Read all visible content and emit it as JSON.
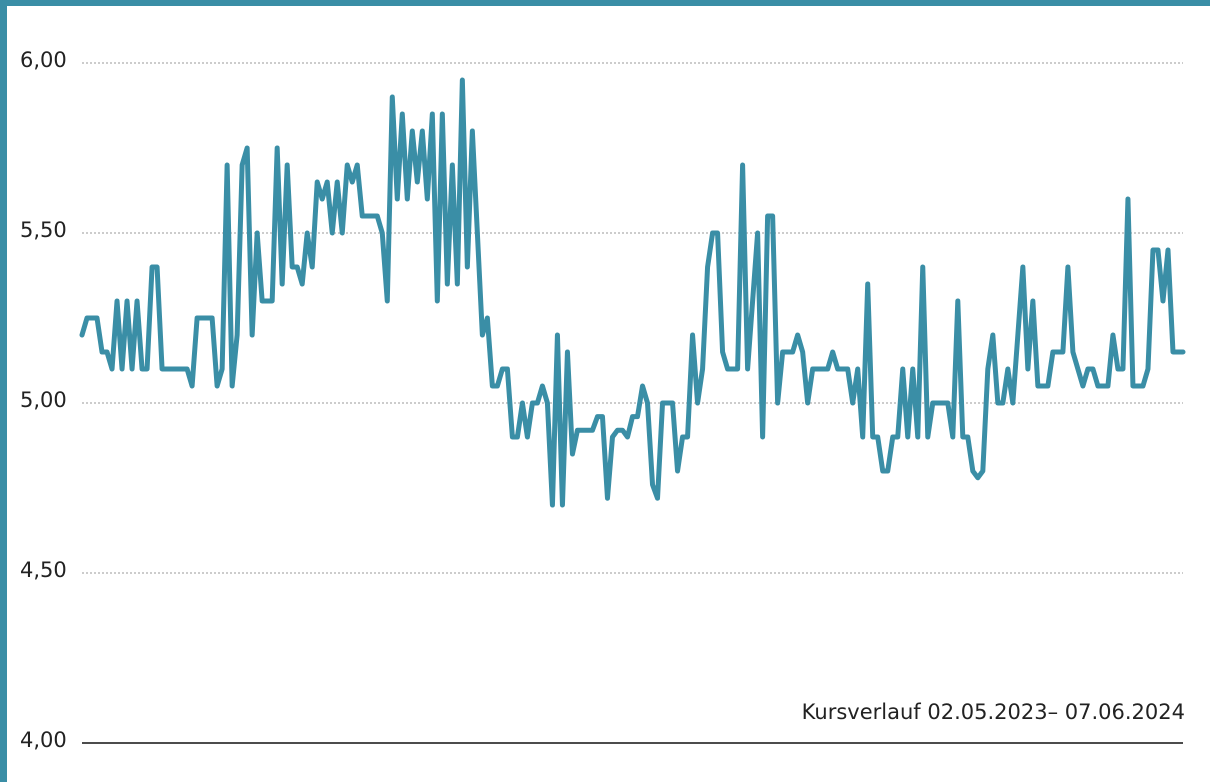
{
  "chart_data": {
    "type": "line",
    "annotation": "Kursverlauf 02.05.2023– 07.06.2024",
    "color": "#3a8ea6",
    "ylim": [
      4,
      6.1
    ],
    "yticks": [
      {
        "value": 4,
        "label": "4,00"
      },
      {
        "value": 4.5,
        "label": "4,50"
      },
      {
        "value": 5,
        "label": "5,00"
      },
      {
        "value": 5.5,
        "label": "5,50"
      },
      {
        "value": 6,
        "label": "6,00"
      }
    ],
    "grid": true,
    "values": [
      5.2,
      5.25,
      5.25,
      5.25,
      5.15,
      5.15,
      5.1,
      5.3,
      5.1,
      5.3,
      5.1,
      5.3,
      5.1,
      5.1,
      5.4,
      5.4,
      5.1,
      5.1,
      5.1,
      5.1,
      5.1,
      5.1,
      5.05,
      5.25,
      5.25,
      5.25,
      5.25,
      5.05,
      5.1,
      5.7,
      5.05,
      5.2,
      5.7,
      5.75,
      5.2,
      5.5,
      5.3,
      5.3,
      5.3,
      5.75,
      5.35,
      5.7,
      5.4,
      5.4,
      5.35,
      5.5,
      5.4,
      5.65,
      5.6,
      5.65,
      5.5,
      5.65,
      5.5,
      5.7,
      5.65,
      5.7,
      5.55,
      5.55,
      5.55,
      5.55,
      5.5,
      5.3,
      5.9,
      5.6,
      5.85,
      5.6,
      5.8,
      5.65,
      5.8,
      5.6,
      5.85,
      5.3,
      5.85,
      5.35,
      5.7,
      5.35,
      5.95,
      5.4,
      5.8,
      5.5,
      5.2,
      5.25,
      5.05,
      5.05,
      5.1,
      5.1,
      4.9,
      4.9,
      5.0,
      4.9,
      5.0,
      5.0,
      5.05,
      5.0,
      4.7,
      5.2,
      4.7,
      5.15,
      4.85,
      4.92,
      4.92,
      4.92,
      4.92,
      4.96,
      4.96,
      4.72,
      4.9,
      4.92,
      4.92,
      4.9,
      4.96,
      4.96,
      5.05,
      5.0,
      4.76,
      4.72,
      5.0,
      5.0,
      5.0,
      4.8,
      4.9,
      4.9,
      5.2,
      5.0,
      5.1,
      5.4,
      5.5,
      5.5,
      5.15,
      5.1,
      5.1,
      5.1,
      5.7,
      5.1,
      5.3,
      5.5,
      4.9,
      5.55,
      5.55,
      5.0,
      5.15,
      5.15,
      5.15,
      5.2,
      5.15,
      5.0,
      5.1,
      5.1,
      5.1,
      5.1,
      5.15,
      5.1,
      5.1,
      5.1,
      5.0,
      5.1,
      4.9,
      5.35,
      4.9,
      4.9,
      4.8,
      4.8,
      4.9,
      4.9,
      5.1,
      4.9,
      5.1,
      4.9,
      5.4,
      4.9,
      5.0,
      5.0,
      5.0,
      5.0,
      4.9,
      5.3,
      4.9,
      4.9,
      4.8,
      4.78,
      4.8,
      5.1,
      5.2,
      5.0,
      5.0,
      5.1,
      5.0,
      5.2,
      5.4,
      5.1,
      5.3,
      5.05,
      5.05,
      5.05,
      5.15,
      5.15,
      5.15,
      5.4,
      5.15,
      5.1,
      5.05,
      5.1,
      5.1,
      5.05,
      5.05,
      5.05,
      5.2,
      5.1,
      5.1,
      5.6,
      5.05,
      5.05,
      5.05,
      5.1,
      5.45,
      5.45,
      5.3,
      5.45,
      5.15,
      5.15,
      5.15
    ]
  }
}
